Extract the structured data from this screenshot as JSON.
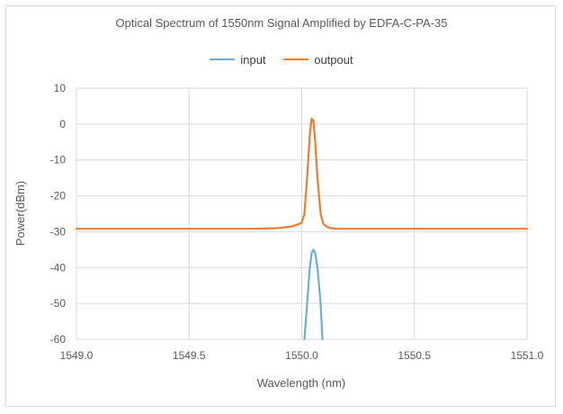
{
  "chart_data": {
    "type": "line",
    "title": "Optical Spectrum of 1550nm Signal Amplified by EDFA-C-PA-35",
    "xlabel": "Wavelength (nm)",
    "ylabel": "Power(dBm)",
    "xlim": [
      1549.0,
      1551.0
    ],
    "ylim": [
      -60,
      10
    ],
    "xticks": [
      1549.0,
      1549.5,
      1550.0,
      1550.5,
      1551.0
    ],
    "xtick_labels": [
      "1549.0",
      "1549.5",
      "1550.0",
      "1550.5",
      "1551.0"
    ],
    "yticks": [
      10,
      0,
      -10,
      -20,
      -30,
      -40,
      -50,
      -60
    ],
    "ytick_labels": [
      "10",
      "0",
      "-10",
      "-20",
      "-30",
      "-40",
      "-50",
      "-60"
    ],
    "grid": true,
    "legend_position": "top",
    "series": [
      {
        "name": "input",
        "color": "#6baed6",
        "x": [
          1550.012,
          1550.024,
          1550.036,
          1550.044,
          1550.052,
          1550.06,
          1550.07,
          1550.084,
          1550.092
        ],
        "y": [
          -60,
          -50,
          -40,
          -36,
          -35,
          -36,
          -40,
          -50,
          -60
        ]
      },
      {
        "name": "outpout",
        "color": "#ed7d31",
        "x": [
          1549.0,
          1549.4,
          1549.8,
          1549.9,
          1549.96,
          1549.99,
          1550.0,
          1550.012,
          1550.024,
          1550.036,
          1550.044,
          1550.052,
          1550.06,
          1550.07,
          1550.084,
          1550.096,
          1550.108,
          1550.12,
          1550.15,
          1550.3,
          1550.6,
          1551.0
        ],
        "y": [
          -29.2,
          -29.2,
          -29.2,
          -29.0,
          -28.5,
          -27.8,
          -27.5,
          -25,
          -15,
          -3,
          1.5,
          1.0,
          -5,
          -15,
          -25,
          -27.8,
          -28.5,
          -28.9,
          -29.2,
          -29.2,
          -29.2,
          -29.2
        ]
      }
    ]
  }
}
